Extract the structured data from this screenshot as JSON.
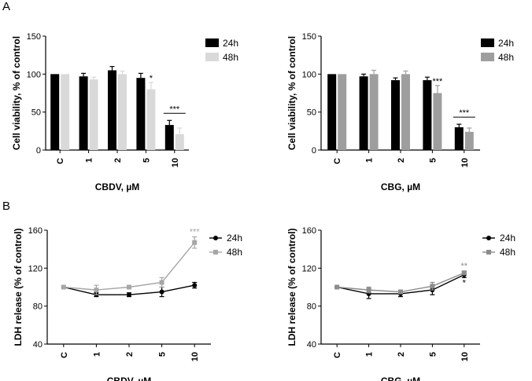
{
  "panels": {
    "a": "A",
    "b": "B"
  },
  "chart_data": [
    {
      "type": "bar",
      "categories": [
        "C",
        "1",
        "2",
        "5",
        "10"
      ],
      "series": [
        {
          "name": "24h",
          "values": [
            100,
            97,
            105,
            95,
            33
          ],
          "errors": [
            0,
            4,
            5,
            6,
            6
          ],
          "color": "#000000"
        },
        {
          "name": "48h",
          "values": [
            100,
            93,
            100,
            80,
            21
          ],
          "errors": [
            0,
            3,
            4,
            9,
            8
          ],
          "color": "#d9d9d9"
        }
      ],
      "xlabel": "CBDV, µM",
      "ylabel": "Cell viability, % of control",
      "ylim": [
        0,
        150
      ],
      "yticks": [
        0,
        50,
        100,
        150
      ],
      "legend": "top-right",
      "annotations": [
        {
          "text": "*",
          "category": "5",
          "series": "48h"
        },
        {
          "text": "***",
          "category": "10",
          "bracket": true
        }
      ]
    },
    {
      "type": "bar",
      "categories": [
        "C",
        "1",
        "2",
        "5",
        "10"
      ],
      "series": [
        {
          "name": "24h",
          "values": [
            100,
            97,
            92,
            92,
            30
          ],
          "errors": [
            0,
            3,
            3,
            4,
            4
          ],
          "color": "#000000"
        },
        {
          "name": "48h",
          "values": [
            100,
            100,
            100,
            75,
            24
          ],
          "errors": [
            0,
            5,
            4,
            10,
            5
          ],
          "color": "#9e9e9e"
        }
      ],
      "xlabel": "CBG, µM",
      "ylabel": "Cell viability, % of control",
      "ylim": [
        0,
        150
      ],
      "yticks": [
        0,
        50,
        100,
        150
      ],
      "legend": "top-right",
      "annotations": [
        {
          "text": "***",
          "category": "5",
          "series": "48h"
        },
        {
          "text": "***",
          "category": "10",
          "bracket": true
        }
      ]
    },
    {
      "type": "line",
      "categories": [
        "C",
        "1",
        "2",
        "5",
        "10"
      ],
      "series": [
        {
          "name": "24h",
          "values": [
            100,
            92,
            92,
            95,
            102
          ],
          "errors": [
            0,
            2,
            2,
            5,
            3
          ],
          "color": "#000000",
          "marker": "circle"
        },
        {
          "name": "48h",
          "values": [
            100,
            97,
            100,
            105,
            147
          ],
          "errors": [
            0,
            5,
            2,
            5,
            6
          ],
          "color": "#a6a6a6",
          "marker": "square"
        }
      ],
      "xlabel": "CBDV, µM",
      "ylabel": "LDH release (% of control)",
      "ylim": [
        40,
        160
      ],
      "yticks": [
        40,
        80,
        120,
        160
      ],
      "legend": "top-right",
      "annotations": [
        {
          "text": "***",
          "category": "10",
          "series": "48h"
        }
      ]
    },
    {
      "type": "line",
      "categories": [
        "C",
        "1",
        "2",
        "5",
        "10"
      ],
      "series": [
        {
          "name": "24h",
          "values": [
            100,
            93,
            93,
            97,
            113
          ],
          "errors": [
            0,
            5,
            3,
            5,
            3
          ],
          "color": "#000000",
          "marker": "circle"
        },
        {
          "name": "48h",
          "values": [
            100,
            97,
            95,
            101,
            115
          ],
          "errors": [
            0,
            3,
            2,
            4,
            2
          ],
          "color": "#8c8c8c",
          "marker": "square"
        }
      ],
      "xlabel": "CBG, µM",
      "ylabel": "LDH release (% of control)",
      "ylim": [
        40,
        160
      ],
      "yticks": [
        40,
        80,
        120,
        160
      ],
      "legend": "top-right",
      "annotations": [
        {
          "text": "**",
          "category": "10",
          "series": "48h"
        },
        {
          "text": "*",
          "category": "10",
          "series": "24h"
        }
      ]
    }
  ]
}
